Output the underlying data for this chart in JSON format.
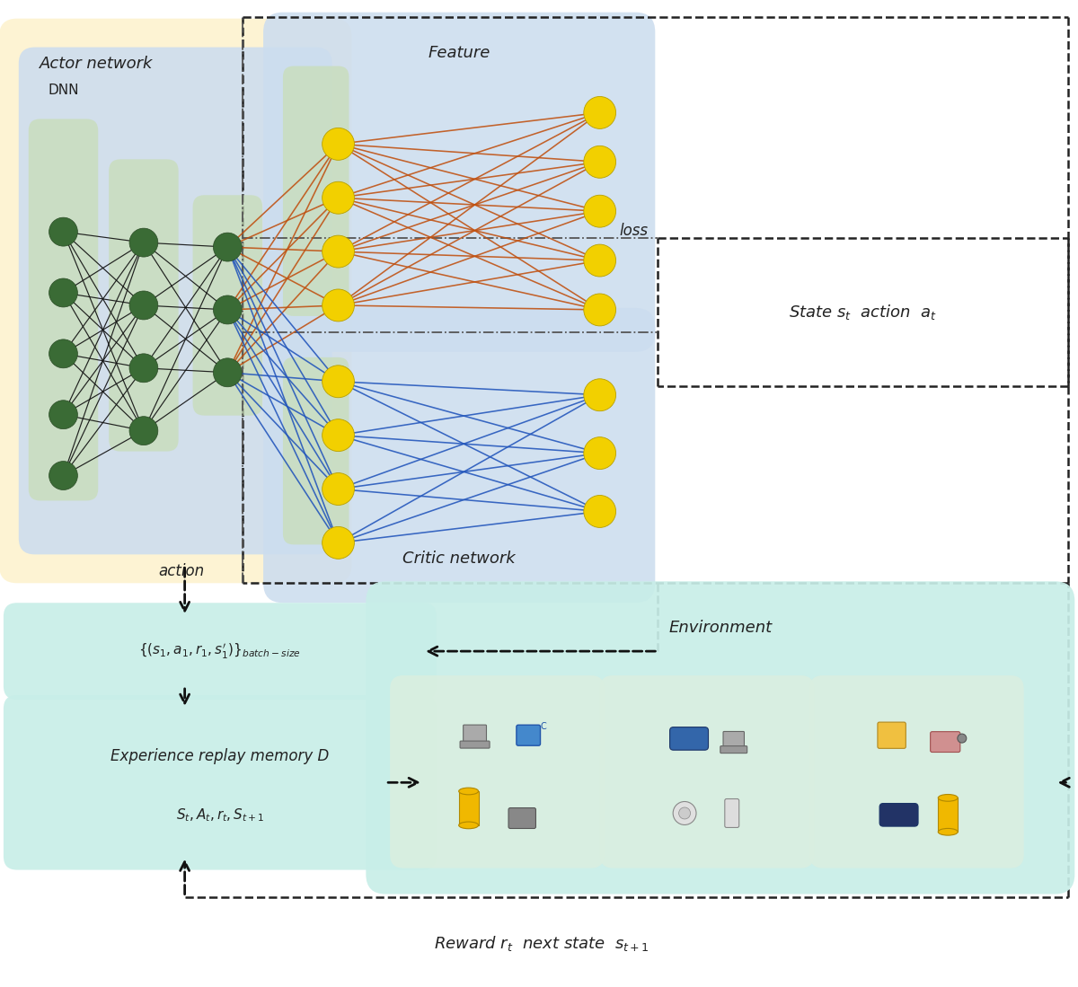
{
  "fig_width": 12.0,
  "fig_height": 10.99,
  "bg_color": "#ffffff",
  "actor_bg": "#fdf3d0",
  "dnn_bg": "#ccddef",
  "feature_bg": "#ccddef",
  "critic_bg": "#ccddef",
  "green_node": "#3a6b35",
  "yellow_node": "#f2d000",
  "orange_line": "#c05010",
  "blue_line": "#2255bb",
  "black_line": "#111111",
  "env_bg": "#c8eee8",
  "env_sub_bg": "#daeee0",
  "mem_bg": "#c8eee8",
  "batch_bg": "#c8eee8",
  "green_sub_bg": "#c8ddb8",
  "title": "Actor network",
  "dnn_label": "DNN",
  "feature_label": "Feature",
  "critic_label": "Critic network",
  "loss_label": "loss",
  "action_label": "action",
  "state_action_label": "State $s_t$  action  $a_t$",
  "batch_label": "$\\{(s_1,a_1,r_1,s_1^{\\prime})\\}_{batch-size}$",
  "memory_label1": "Experience replay memory D",
  "memory_label2": "$S_t, A_t, r_t, S_{t+1}$",
  "env_label": "Environment",
  "reward_label": "Reward $r_t$  next state  $s_{t+1}$"
}
